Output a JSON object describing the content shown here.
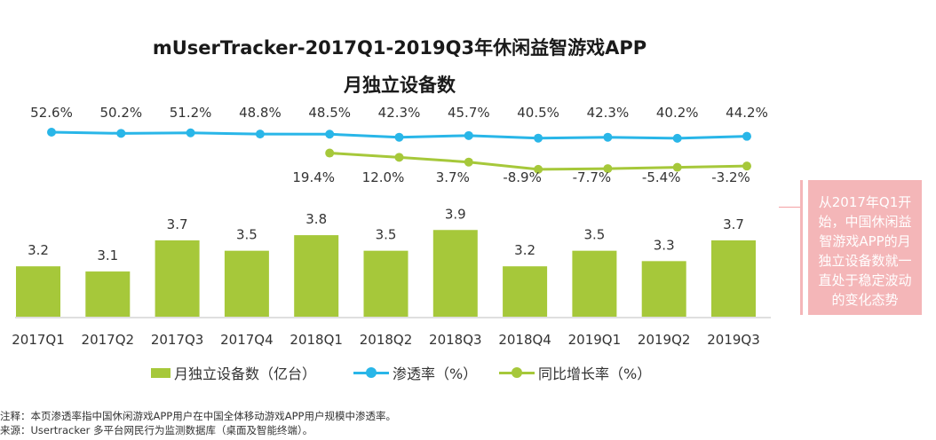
{
  "title_line1": "mUserTracker-2017Q1-2019Q3年休闲益智游戏APP",
  "title_line2": "月独立设备数",
  "chart_data": {
    "type": "bar+line",
    "categories": [
      "2017Q1",
      "2017Q2",
      "2017Q3",
      "2017Q4",
      "2018Q1",
      "2018Q2",
      "2018Q3",
      "2018Q4",
      "2019Q1",
      "2019Q2",
      "2019Q3"
    ],
    "bars": {
      "name": "月独立设备数（亿台）",
      "values": [
        3.2,
        3.1,
        3.7,
        3.5,
        3.8,
        3.5,
        3.9,
        3.2,
        3.5,
        3.3,
        3.7
      ],
      "labels": [
        "3.2",
        "3.1",
        "3.7",
        "3.5",
        "3.8",
        "3.5",
        "3.9",
        "3.2",
        "3.5",
        "3.3",
        "3.7"
      ],
      "color": "#a6c83a"
    },
    "penetration": {
      "name": "渗透率（%）",
      "values": [
        52.6,
        50.2,
        51.2,
        48.8,
        48.5,
        42.3,
        45.7,
        40.5,
        42.3,
        40.2,
        44.2
      ],
      "labels": [
        "52.6%",
        "50.2%",
        "51.2%",
        "48.8%",
        "48.5%",
        "42.3%",
        "45.7%",
        "40.5%",
        "42.3%",
        "40.2%",
        "44.2%"
      ],
      "color": "#29b6e8"
    },
    "yoy": {
      "name": "同比增长率（%）",
      "values": [
        null,
        null,
        null,
        null,
        19.4,
        12.0,
        3.7,
        -8.9,
        -7.7,
        -5.4,
        -3.2
      ],
      "labels": [
        "",
        "",
        "",
        "",
        "19.4%",
        "12.0%",
        "3.7%",
        "-8.9%",
        "-7.7%",
        "-5.4%",
        "-3.2%"
      ],
      "color": "#a6c83a"
    },
    "legend_position": "bottom"
  },
  "callout_text": "从2017年Q1开始，中国休闲益智游戏APP的月独立设备数就一直处于稳定波动的变化态势",
  "notes": {
    "line1": "注释：本页渗透率指中国休闲游戏APP用户在中国全体移动游戏APP用户规模中渗透率。",
    "line2": "来源：Usertracker 多平台网民行为监测数据库（桌面及智能终端）。"
  }
}
